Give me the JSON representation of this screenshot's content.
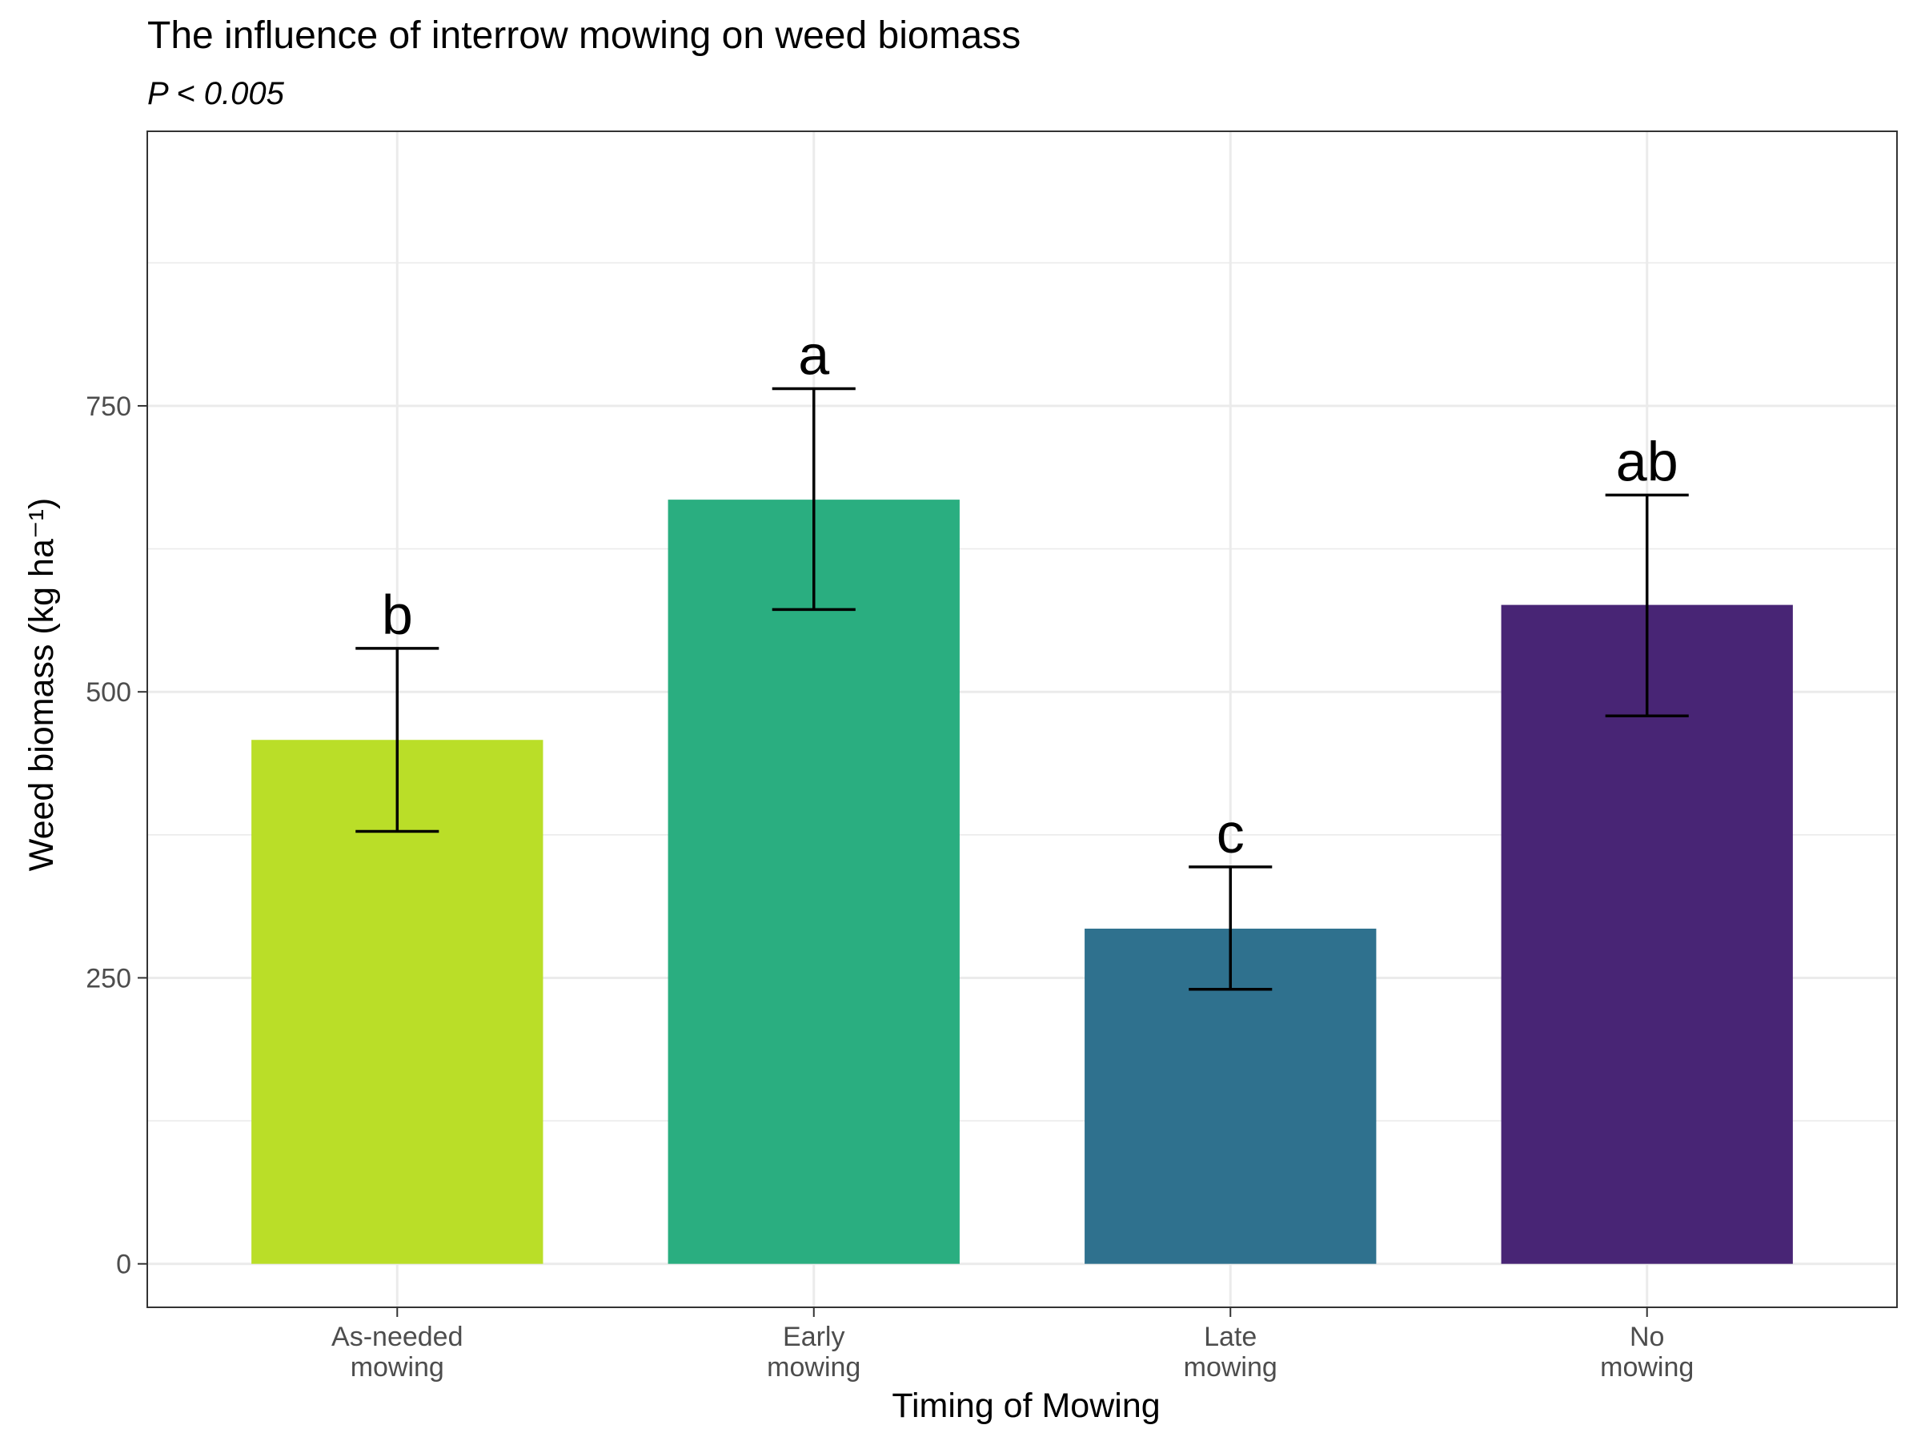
{
  "chart_data": {
    "type": "bar",
    "title": "The influence of interrow mowing on weed biomass",
    "subtitle": "P < 0.005",
    "xlabel": "Timing of Mowing",
    "ylabel": "Weed biomass (kg ha⁻¹)",
    "categories": [
      [
        "As-needed",
        "mowing"
      ],
      [
        "Early",
        "mowing"
      ],
      [
        "Late",
        "mowing"
      ],
      [
        "No",
        "mowing"
      ]
    ],
    "values": [
      458,
      668,
      293,
      576
    ],
    "error_low": [
      378,
      572,
      240,
      479
    ],
    "error_high": [
      538,
      765,
      347,
      672
    ],
    "letters": [
      "b",
      "a",
      "c",
      "ab"
    ],
    "colors": [
      "#bade28",
      "#2aae80",
      "#2f718e",
      "#482575"
    ],
    "ylim": [
      -38,
      990
    ],
    "yticks": [
      0,
      250,
      500,
      750
    ],
    "grid": true,
    "legend": "none"
  }
}
